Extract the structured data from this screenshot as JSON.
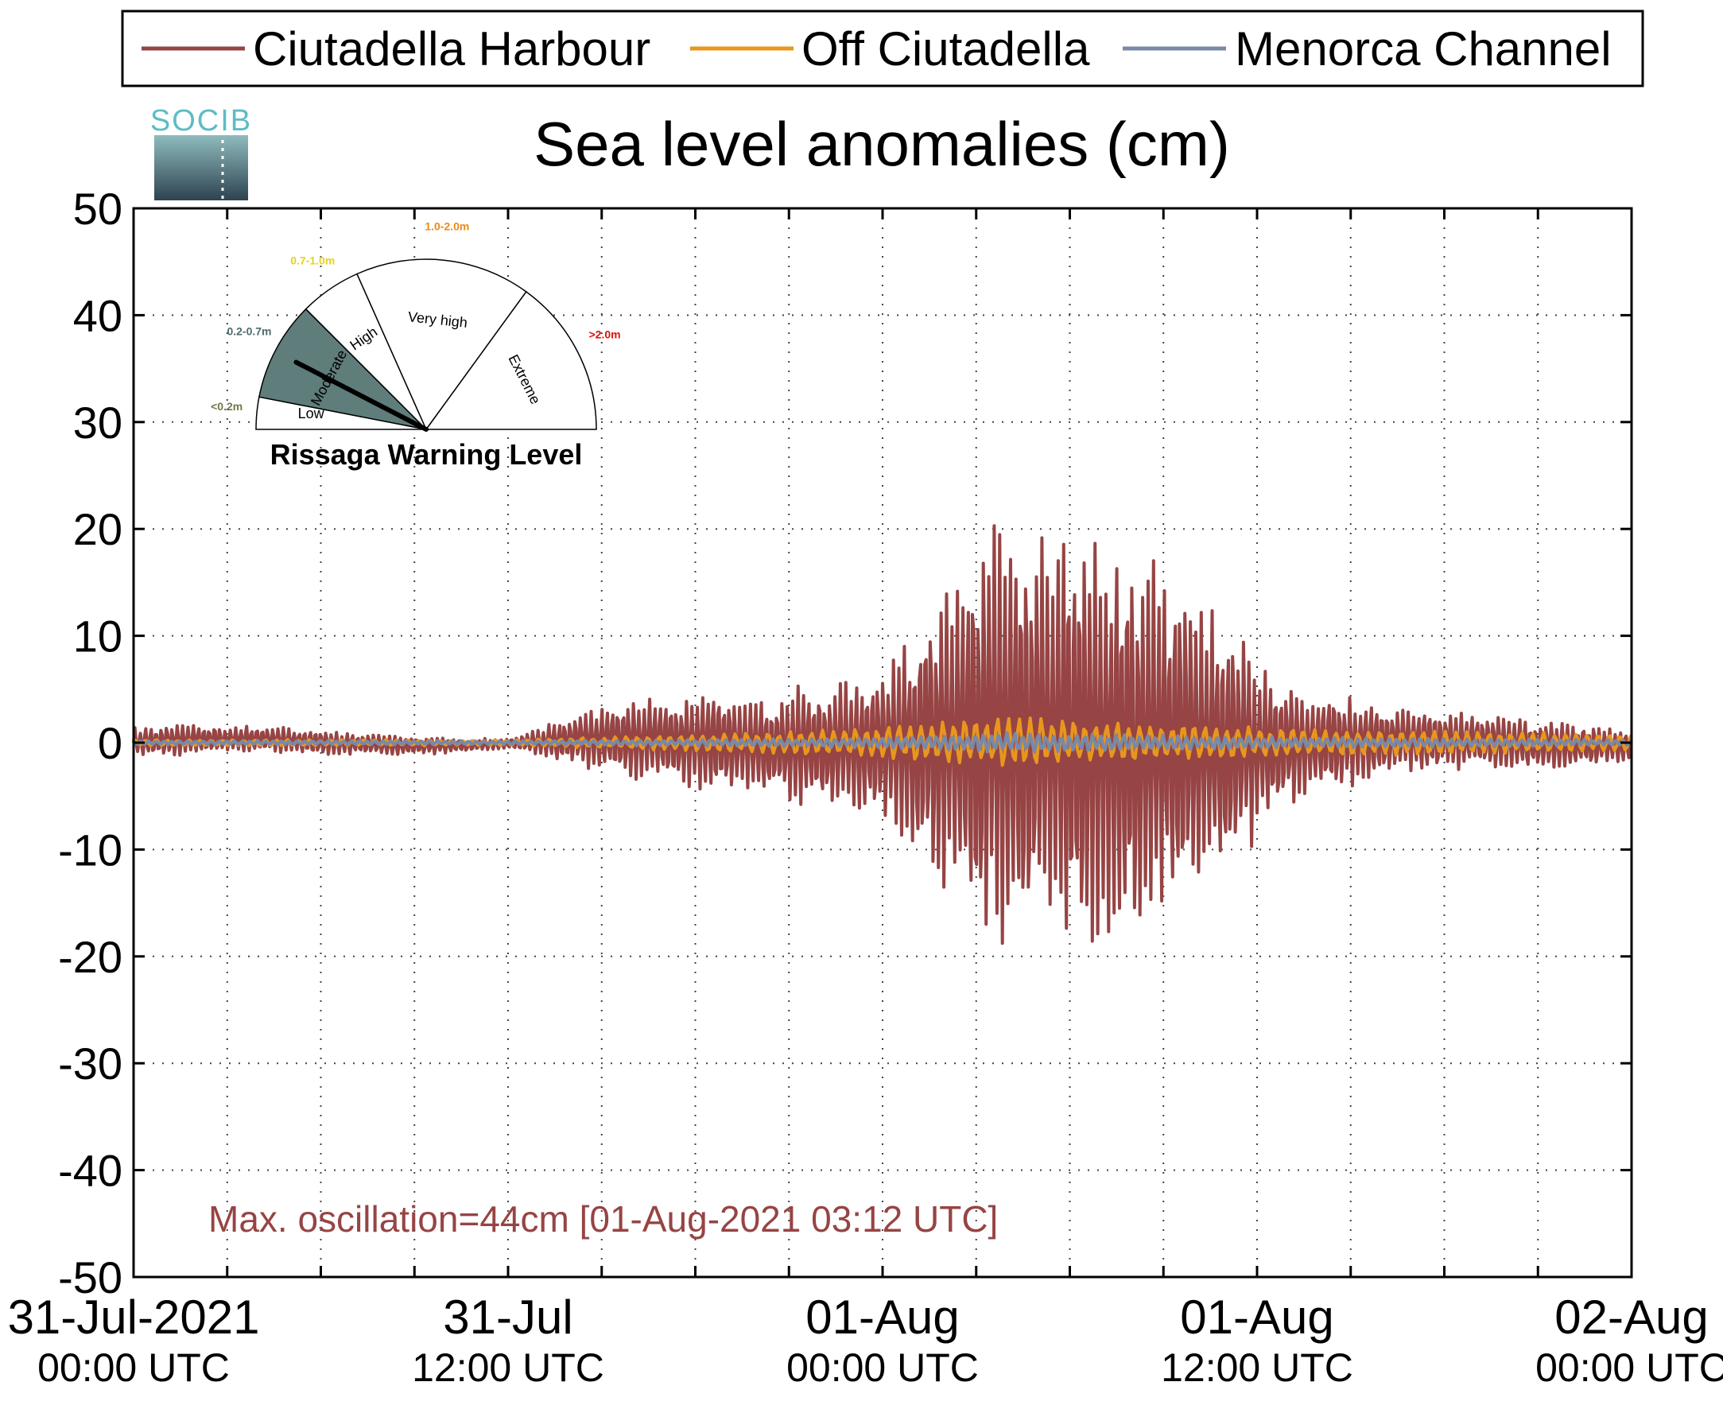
{
  "chart_data": {
    "type": "line",
    "title": "Sea level anomalies (cm)",
    "ylim": [
      -50,
      50
    ],
    "yticks": [
      50,
      40,
      30,
      20,
      10,
      0,
      -10,
      -20,
      -30,
      -40,
      -50
    ],
    "grid": true,
    "legend_position": "top",
    "x_tick_labels": [
      {
        "date": "31-Jul-2021",
        "time": "00:00 UTC"
      },
      {
        "date": "31-Jul",
        "time": "12:00 UTC"
      },
      {
        "date": "01-Aug",
        "time": "00:00 UTC"
      },
      {
        "date": "01-Aug",
        "time": "12:00 UTC"
      },
      {
        "date": "02-Aug",
        "time": "00:00 UTC"
      }
    ],
    "x_range": [
      "31-Jul-2021 00:00 UTC",
      "02-Aug-2021 00:00 UTC"
    ],
    "series": [
      {
        "name": "Ciutadella Harbour",
        "color": "#974444",
        "envelope_hours": [
          0,
          6,
          12,
          16,
          20,
          24,
          28,
          31,
          34,
          37,
          40,
          44,
          48
        ],
        "envelope_amplitude_cm": [
          1.5,
          1.2,
          0.5,
          4,
          5,
          7,
          22,
          21,
          15,
          6,
          3.5,
          2.5,
          1.5
        ]
      },
      {
        "name": "Off Ciutadella",
        "color": "#e8961e",
        "envelope_hours": [
          0,
          12,
          20,
          24,
          28,
          31,
          36,
          48
        ],
        "envelope_amplitude_cm": [
          0.3,
          0.3,
          1.0,
          1.5,
          2.5,
          2.0,
          1.5,
          0.8
        ]
      },
      {
        "name": "Menorca Channel",
        "color": "#7889a8",
        "envelope_hours": [
          0,
          12,
          24,
          28,
          36,
          48
        ],
        "envelope_amplitude_cm": [
          0.2,
          0.2,
          0.5,
          1.0,
          0.6,
          0.3
        ]
      }
    ],
    "annotation": "Max. oscillation=44cm [01-Aug-2021 03:12 UTC]"
  },
  "logo": {
    "text": "SOCIB"
  },
  "gauge": {
    "title": "Rissaga Warning Level",
    "sectors": [
      {
        "label": "Low",
        "range": "<0.2m",
        "range_color": "#6e7a4a",
        "active": false
      },
      {
        "label": "Moderate",
        "range": "0.2-0.7m",
        "range_color": "#4e6b6b",
        "active": true
      },
      {
        "label": "High",
        "range": "0.7-1.0m",
        "range_color": "#e6d21e",
        "active": false
      },
      {
        "label": "Very high",
        "range": "1.0-2.0m",
        "range_color": "#ef8a14",
        "active": false
      },
      {
        "label": "Extreme",
        "range": ">2.0m",
        "range_color": "#e01010",
        "active": false
      }
    ],
    "active_fill": "#5f7d7b",
    "needle_value_m": 0.44
  }
}
